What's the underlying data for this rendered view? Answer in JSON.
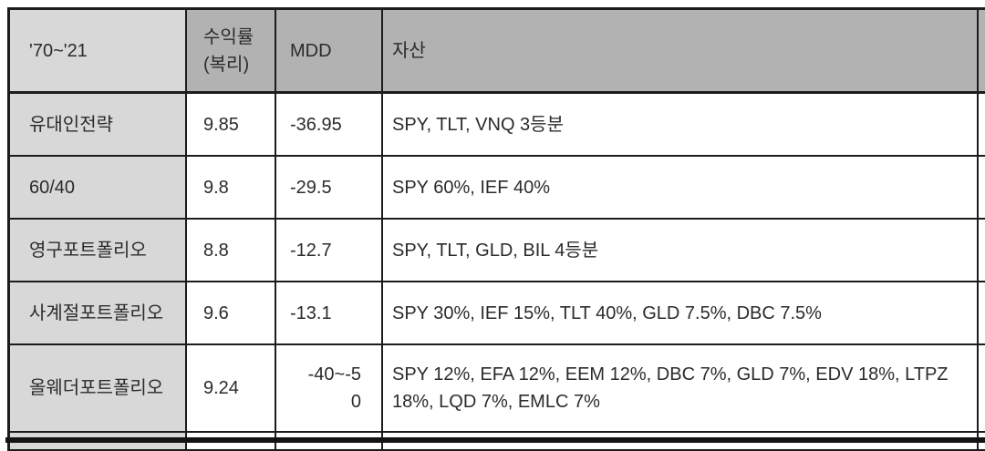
{
  "table": {
    "period_header": "'70~'21",
    "headers": [
      "'70~'21",
      "수익률\n(복리)",
      "MDD",
      "자산"
    ],
    "rows": [
      {
        "name": "유대인전략",
        "cagr": "9.85",
        "mdd": "-36.95",
        "assets": "SPY, TLT, VNQ 3등분"
      },
      {
        "name": "60/40",
        "cagr": "9.8",
        "mdd": "-29.5",
        "assets": "SPY 60%, IEF 40%"
      },
      {
        "name": "영구포트폴리오",
        "cagr": "8.8",
        "mdd": "-12.7",
        "assets": "SPY, TLT, GLD, BIL 4등분"
      },
      {
        "name": "사계절포트폴리오",
        "cagr": "9.6",
        "mdd": "-13.1",
        "assets": "SPY 30%, IEF 15%, TLT 40%, GLD 7.5%, DBC 7.5%"
      },
      {
        "name": "올웨더포트폴리오",
        "cagr": "9.24",
        "mdd": "-40~-5\n0",
        "assets": "SPY 12%, EFA 12%, EEM 12%, DBC 7%, GLD 7%, EDV 18%, LTPZ 18%, LQD 7%, EMLC 7%"
      }
    ],
    "colors": {
      "header_bg": "#b2b2b2",
      "label_bg": "#d8d8d8",
      "border": "#1c1c1c",
      "text": "#2b2b2b"
    }
  }
}
